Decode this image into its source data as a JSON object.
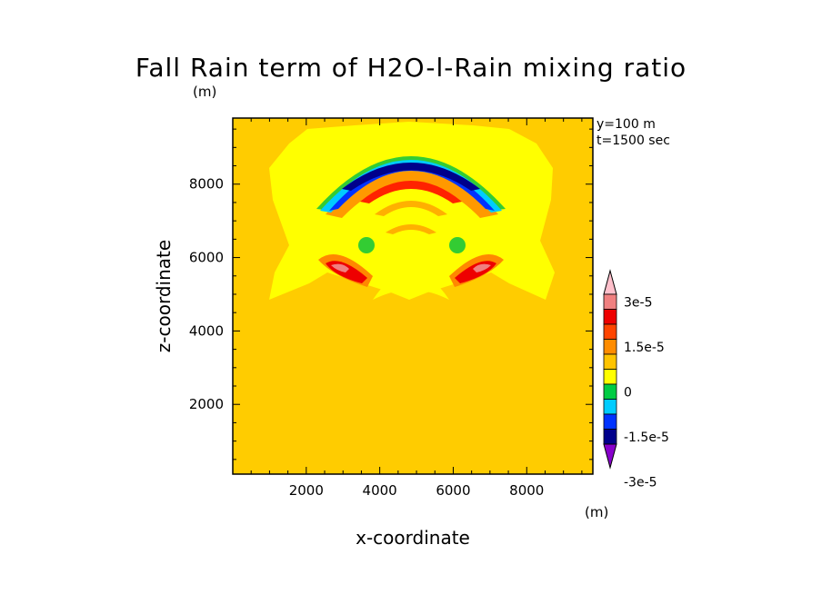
{
  "chart_data": {
    "type": "heatmap",
    "title": "Fall Rain term of H2O-l-Rain mixing ratio",
    "xlabel": "x-coordinate",
    "ylabel": "z-coordinate",
    "unit_top": "(m)",
    "unit_colorbar": "(m)",
    "info": [
      "y=100 m",
      "t=1500 sec"
    ],
    "xlim": [
      0,
      9800
    ],
    "ylim": [
      100,
      9800
    ],
    "xticks": [
      "2000",
      "4000",
      "6000",
      "8000"
    ],
    "xtick_values": [
      2000,
      4000,
      6000,
      8000
    ],
    "yticks": [
      "2000",
      "4000",
      "6000",
      "8000"
    ],
    "ytick_values": [
      2000,
      4000,
      6000,
      8000
    ],
    "colorbar": {
      "levels": [
        "3e-5",
        "1.5e-5",
        "0",
        "-1.5e-5",
        "-3e-5"
      ],
      "colors_top_to_bottom": [
        "#ffc0cb",
        "#f08080",
        "#ee0000",
        "#ff4500",
        "#ff8c00",
        "#ffc400",
        "#ffff00",
        "#00cc44",
        "#00ccff",
        "#0033ff",
        "#00008b",
        "#8800cc"
      ]
    },
    "background_color": "#ffcc00"
  }
}
